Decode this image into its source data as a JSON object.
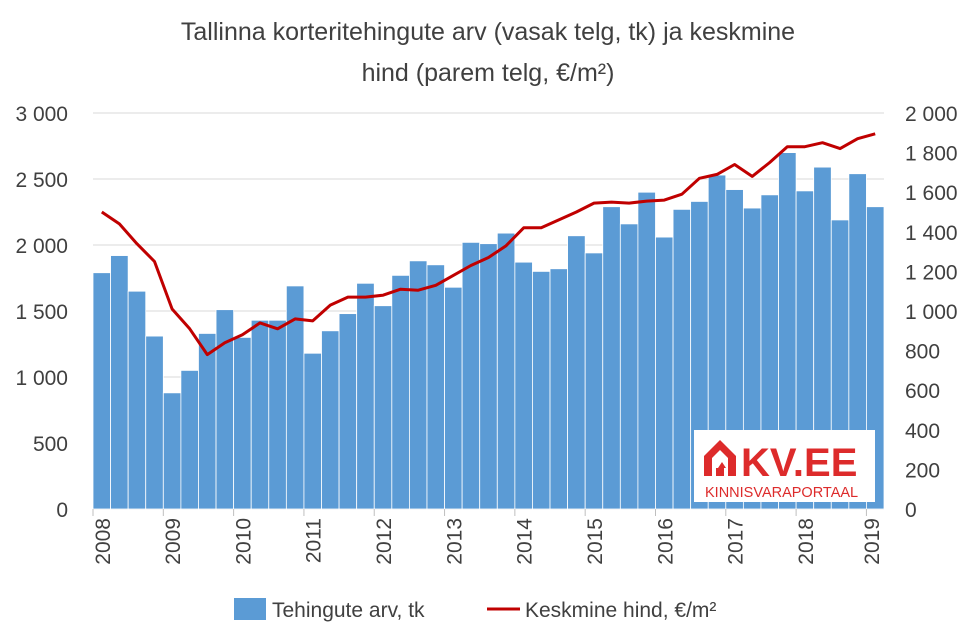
{
  "chart_data": {
    "type": "bar",
    "title_lines": [
      "Tallinna korteritehingute arv (vasak telg, tk) ja keskmine",
      "hind (parem telg, €/m²)"
    ],
    "categories": [
      "2008 Q1",
      "2008 Q2",
      "2008 Q3",
      "2008 Q4",
      "2009 Q1",
      "2009 Q2",
      "2009 Q3",
      "2009 Q4",
      "2010 Q1",
      "2010 Q2",
      "2010 Q3",
      "2010 Q4",
      "2011 Q1",
      "2011 Q2",
      "2011 Q3",
      "2011 Q4",
      "2012 Q1",
      "2012 Q2",
      "2012 Q3",
      "2012 Q4",
      "2013 Q1",
      "2013 Q2",
      "2013 Q3",
      "2013 Q4",
      "2014 Q1",
      "2014 Q2",
      "2014 Q3",
      "2014 Q4",
      "2015 Q1",
      "2015 Q2",
      "2015 Q3",
      "2015 Q4",
      "2016 Q1",
      "2016 Q2",
      "2016 Q3",
      "2016 Q4",
      "2017 Q1",
      "2017 Q2",
      "2017 Q3",
      "2017 Q4",
      "2018 Q1",
      "2018 Q2",
      "2018 Q3",
      "2018 Q4",
      "2019 Q1"
    ],
    "x_tick_labels": [
      "2008",
      "2009",
      "2010",
      "2011",
      "2012",
      "2013",
      "2014",
      "2015",
      "2016",
      "2017",
      "2018",
      "2019"
    ],
    "y_left": {
      "ylim": [
        0,
        3000
      ],
      "ticks": [
        "0",
        "500",
        "1 000",
        "1 500",
        "2 000",
        "2 500",
        "3 000"
      ],
      "tick_values": [
        0,
        500,
        1000,
        1500,
        2000,
        2500,
        3000
      ]
    },
    "y_right": {
      "ylim": [
        0,
        2000
      ],
      "ticks": [
        "0",
        "200",
        "400",
        "600",
        "800",
        "1 000",
        "1 200",
        "1 400",
        "1 600",
        "1 800",
        "2 000"
      ],
      "tick_values": [
        0,
        200,
        400,
        600,
        800,
        1000,
        1200,
        1400,
        1600,
        1800,
        2000
      ]
    },
    "series": [
      {
        "name": "Tehingute arv, tk",
        "type": "bar",
        "axis": "left",
        "color": "#5B9BD5",
        "values": [
          1790,
          1920,
          1650,
          1310,
          880,
          1050,
          1330,
          1510,
          1300,
          1430,
          1430,
          1690,
          1180,
          1350,
          1480,
          1710,
          1540,
          1770,
          1880,
          1850,
          1680,
          2020,
          2010,
          2090,
          1870,
          1800,
          1820,
          2070,
          1940,
          2290,
          2160,
          2400,
          2060,
          2270,
          2330,
          2530,
          2420,
          2280,
          2380,
          2700,
          2410,
          2590,
          2190,
          2540,
          2290
        ]
      },
      {
        "name": "Keskmine hind, €/m²",
        "type": "line",
        "axis": "right",
        "color": "#C00000",
        "values": [
          1500,
          1440,
          1340,
          1250,
          1010,
          910,
          780,
          840,
          880,
          940,
          910,
          960,
          950,
          1030,
          1070,
          1070,
          1080,
          1110,
          1105,
          1130,
          1180,
          1230,
          1270,
          1330,
          1420,
          1420,
          1460,
          1500,
          1545,
          1550,
          1545,
          1555,
          1560,
          1590,
          1670,
          1690,
          1740,
          1680,
          1750,
          1830,
          1830,
          1850,
          1820,
          1870,
          1895
        ]
      }
    ],
    "legend_position": "bottom",
    "grid": true
  },
  "logo": {
    "text_main": "KV.EE",
    "text_sub": "KINNISVARAPORTAAL",
    "color": "#DD2B2B"
  }
}
